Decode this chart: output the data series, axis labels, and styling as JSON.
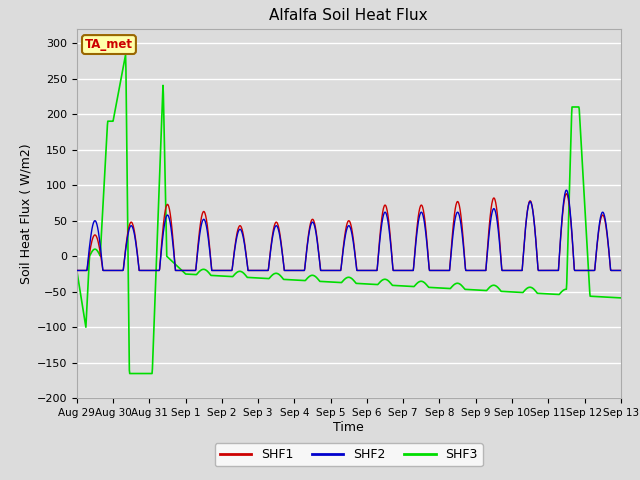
{
  "title": "Alfalfa Soil Heat Flux",
  "xlabel": "Time",
  "ylabel": "Soil Heat Flux ( W/m2)",
  "ylim": [
    -200,
    320
  ],
  "yticks": [
    -200,
    -150,
    -100,
    -50,
    0,
    50,
    100,
    150,
    200,
    250,
    300
  ],
  "bg_color": "#dcdcdc",
  "plot_bg_color": "#dcdcdc",
  "line_colors": {
    "SHF1": "#cc0000",
    "SHF2": "#0000cc",
    "SHF3": "#00dd00"
  },
  "ta_met_facecolor": "#ffffaa",
  "ta_met_edgecolor": "#996600",
  "ta_met_textcolor": "#cc0000",
  "tick_labels": [
    "Aug 29",
    "Aug 30",
    "Aug 31",
    "Sep 1",
    "Sep 2",
    "Sep 3",
    "Sep 4",
    "Sep 5",
    "Sep 6",
    "Sep 7",
    "Sep 8",
    "Sep 9",
    "Sep 10",
    "Sep 11",
    "Sep 12",
    "Sep 13"
  ],
  "n_days": 15,
  "n_per_day": 96
}
